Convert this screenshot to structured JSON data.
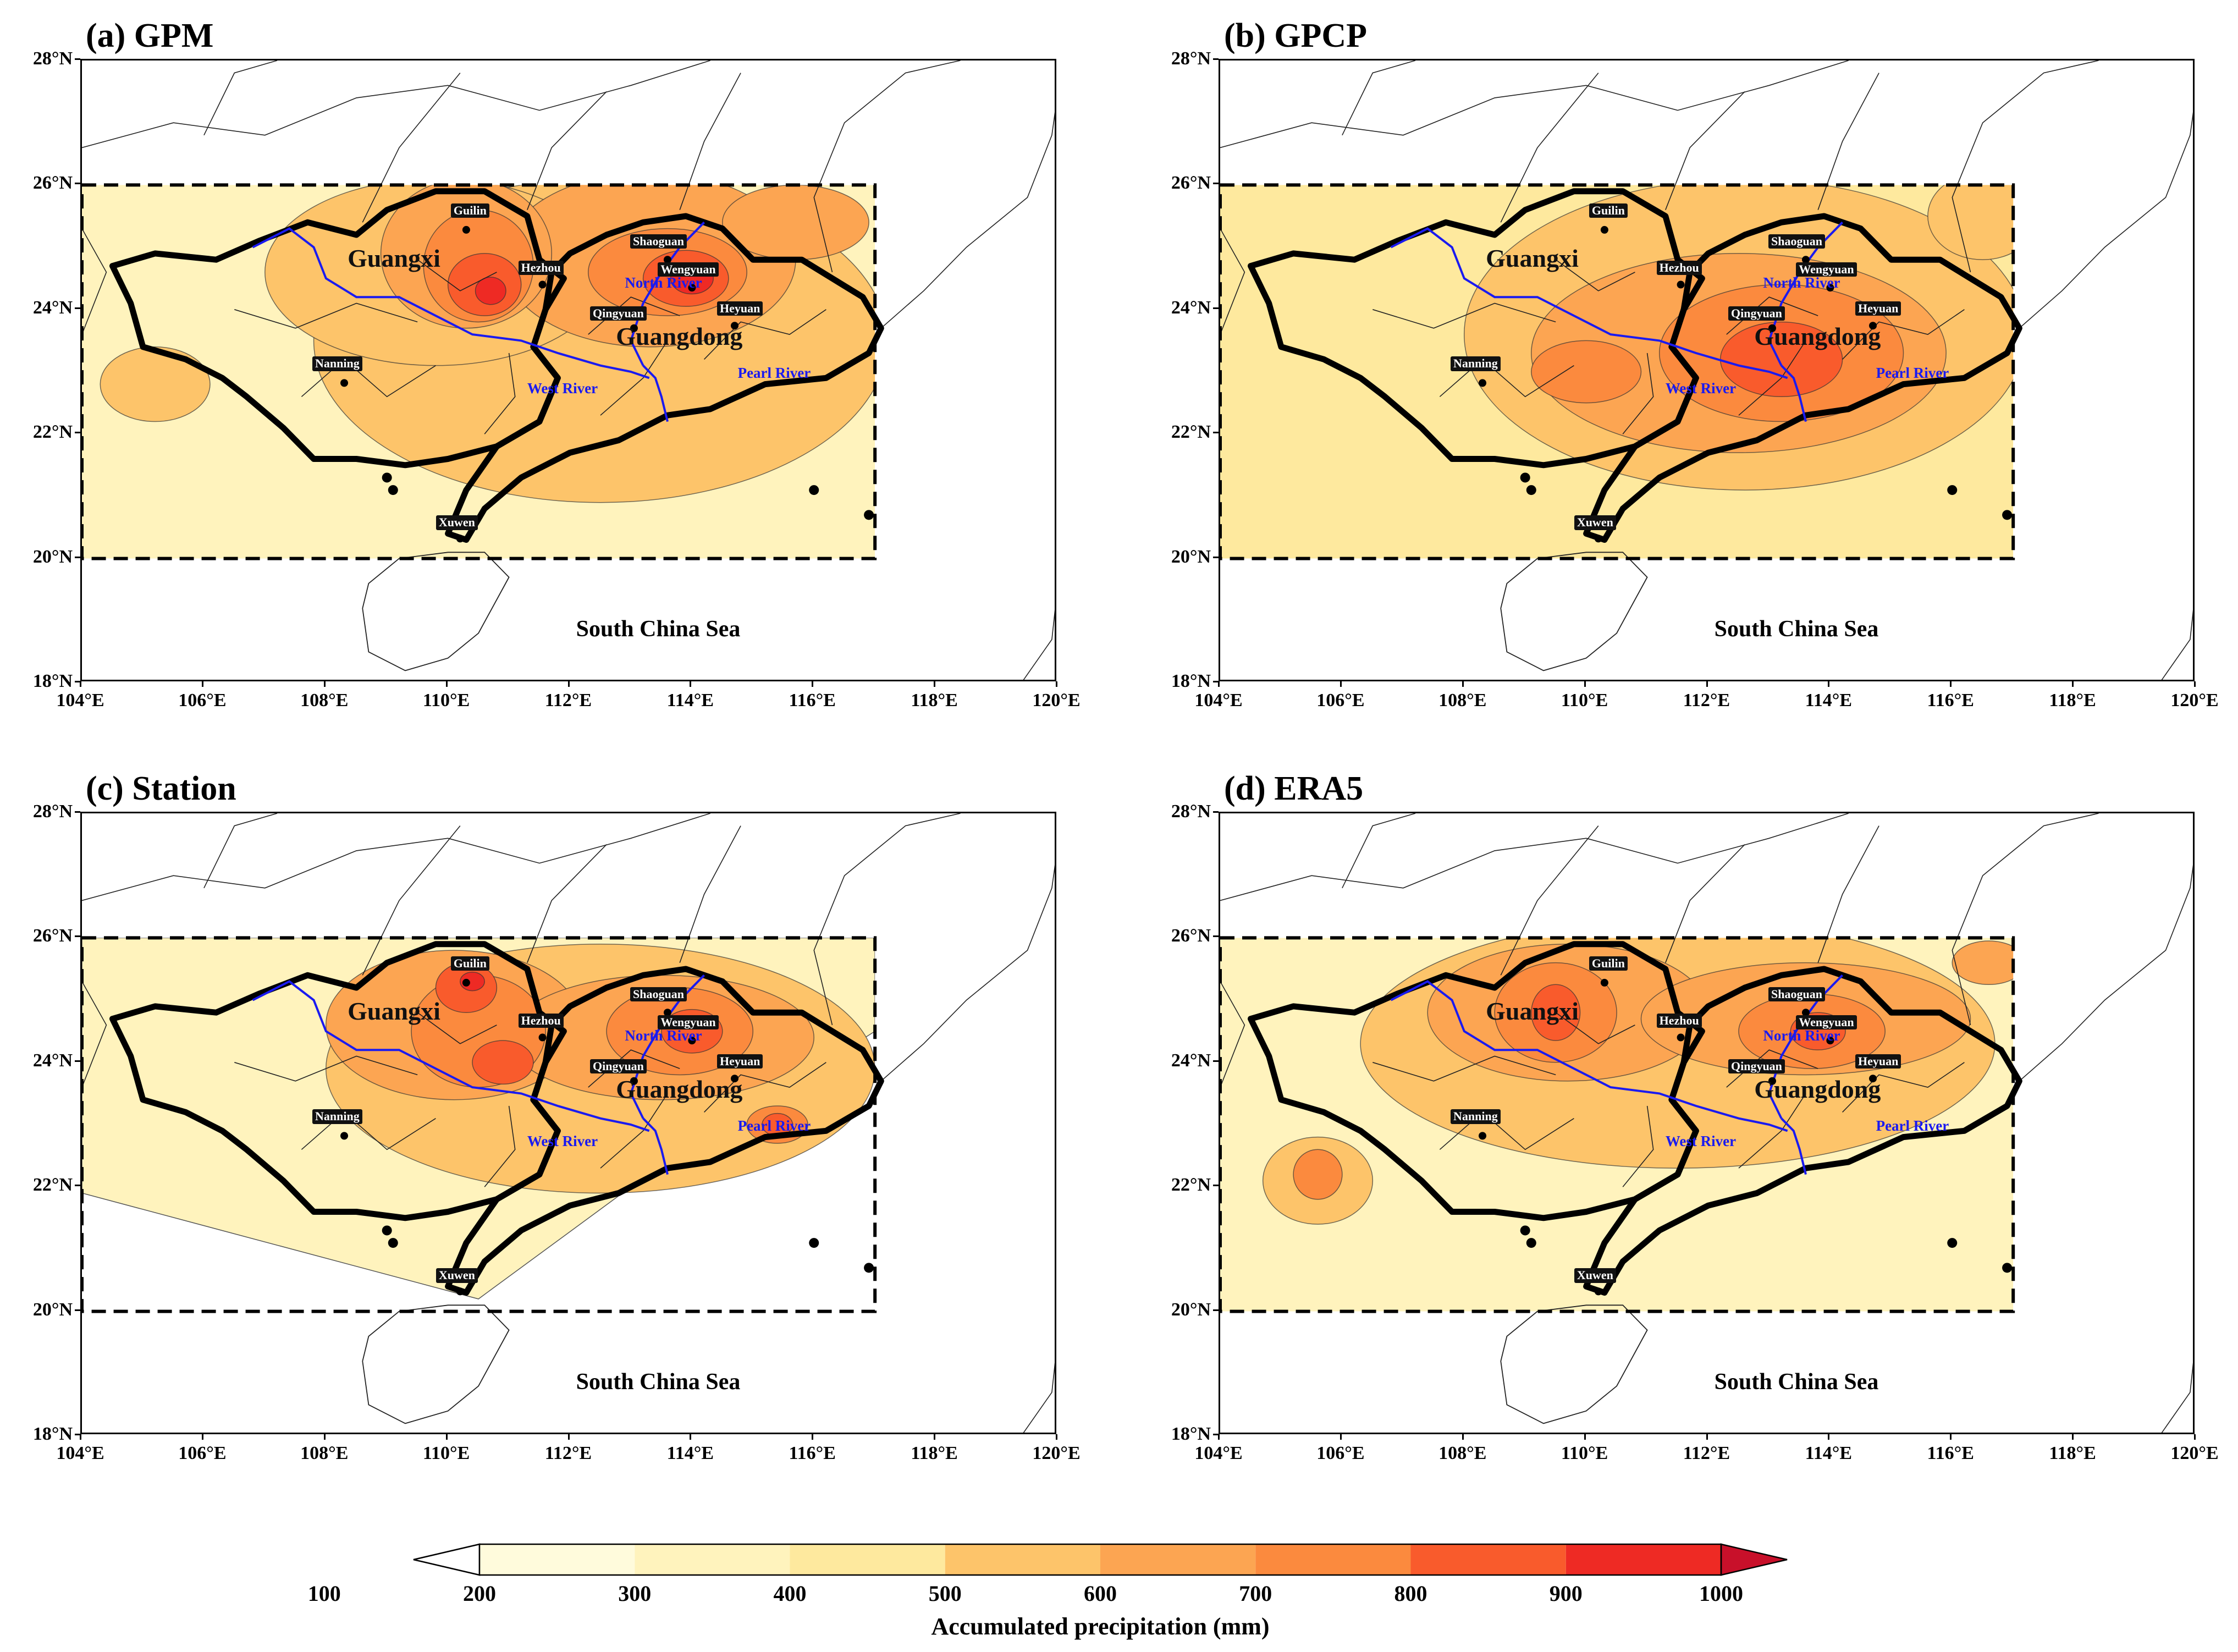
{
  "figure": {
    "colorbar": {
      "levels": [
        "100",
        "200",
        "300",
        "400",
        "500",
        "600",
        "700",
        "800",
        "900",
        "1000"
      ],
      "colors": [
        "#ffffff",
        "#fffbdc",
        "#fff3bd",
        "#fee99e",
        "#fdc46a",
        "#fca552",
        "#fb8a3e",
        "#f95b2c",
        "#ee2a24",
        "#c8102a"
      ],
      "label": "Accumulated precipitation (mm)"
    },
    "axes": {
      "lat_ticks": [
        "28°N",
        "26°N",
        "24°N",
        "22°N",
        "20°N",
        "18°N"
      ],
      "lon_ticks": [
        "104°E",
        "106°E",
        "108°E",
        "110°E",
        "112°E",
        "114°E",
        "116°E",
        "118°E",
        "120°E"
      ]
    },
    "map_labels": {
      "provinces": [
        "Guangxi",
        "Guangdong"
      ],
      "cities": [
        "Guilin",
        "Hezhou",
        "Nanning",
        "Shaoguan",
        "Wengyuan",
        "Qingyuan",
        "Heyuan",
        "Xuwen"
      ],
      "rivers": [
        "North River",
        "West River",
        "Pearl River"
      ],
      "sea": "South China Sea"
    },
    "panels": [
      {
        "title": "(a) GPM"
      },
      {
        "title": "(b) GPCP"
      },
      {
        "title": "(c) Station"
      },
      {
        "title": "(d) ERA5"
      }
    ]
  }
}
